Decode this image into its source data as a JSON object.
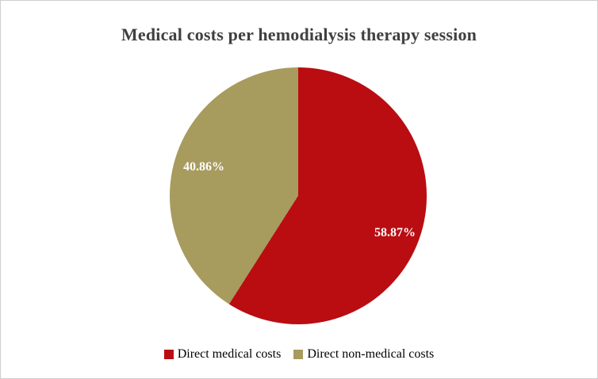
{
  "title": "Medical costs per hemodialysis therapy session",
  "chart_data": {
    "type": "pie",
    "title": "Medical costs per hemodialysis therapy session",
    "slices": [
      {
        "label": "Direct medical costs",
        "value": 58.87,
        "display": "58.87%",
        "color": "#b90d12"
      },
      {
        "label": "Direct non-medical costs",
        "value": 40.86,
        "display": "40.86%",
        "color": "#a79b5e"
      }
    ],
    "start_angle_deg": 0,
    "direction": "clockwise",
    "legend_position": "bottom",
    "data_label_color": "#ffffff",
    "title_color": "#404040",
    "background": "#ffffff"
  }
}
